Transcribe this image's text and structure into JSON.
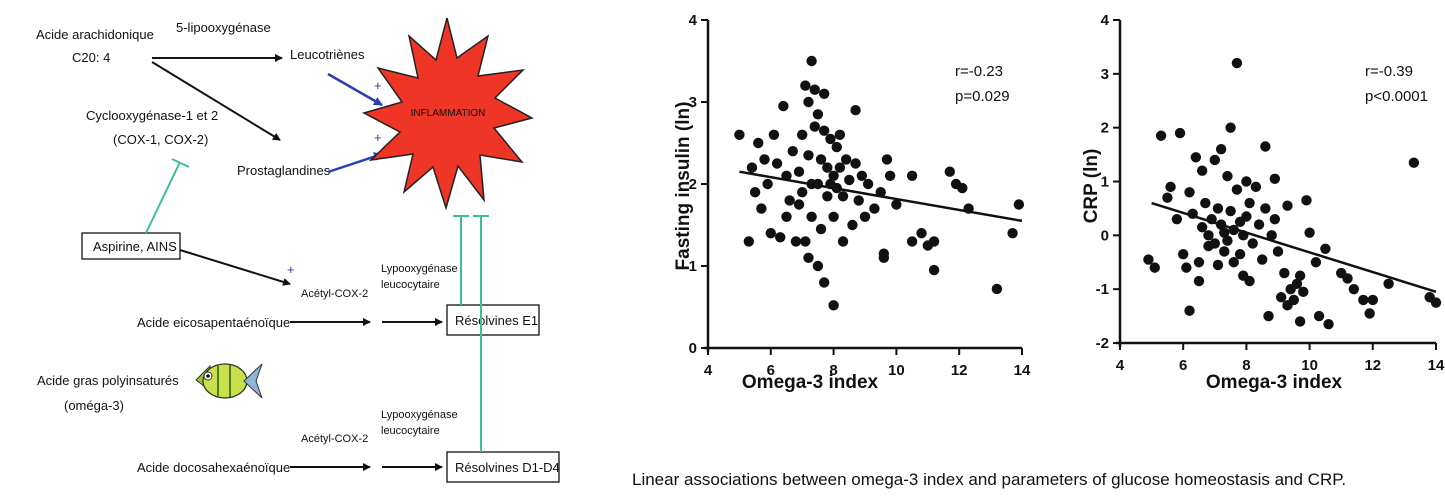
{
  "diagram": {
    "nodes": {
      "arachidonic": "Acide arachidonique",
      "c20": "C20: 4",
      "lipox5": "5-lipooxygénase",
      "leuco": "Leucotriènes",
      "cox_line1": "Cyclooxygénase-1 et 2",
      "cox_line2": "(COX-1, COX-2)",
      "prosta": "Prostaglandines",
      "inflammation": "INFLAMMATION",
      "aspirin": "Aspirine, AINS",
      "acetyl1": "Acétyl-COX-2",
      "lypo1_line1": "Lypooxygénase",
      "lypo1_line2": "leucocytaire",
      "epa": "Acide eicosapentaénoïque",
      "resolvE": "Résolvines E1",
      "pufa_line1": "Acide gras polyinsaturés",
      "pufa_line2": "(oméga-3)",
      "acetyl2": "Acétyl-COX-2",
      "lypo2_line1": "Lypooxygénase",
      "lypo2_line2": "leucocytaire",
      "dha": "Acide docosahexaénoïque",
      "resolvD": "Résolvines D1-D4",
      "plus": "+"
    },
    "colors": {
      "activation_arrow": "#2a3fb0",
      "inhibition_line": "#3dbf8f",
      "burst_fill": "#ee3526",
      "fish_body": "#c8e04a"
    }
  },
  "caption": "Linear associations between omega-3 index and parameters of glucose homeostasis and CRP.",
  "chart_data": [
    {
      "type": "scatter",
      "title": "",
      "xlabel": "Omega-3 index",
      "ylabel": "Fasting insulin (ln)",
      "xlim": [
        4,
        14
      ],
      "ylim": [
        0,
        4
      ],
      "xticks": [
        4,
        6,
        8,
        10,
        12,
        14
      ],
      "yticks": [
        0,
        1,
        2,
        3,
        4
      ],
      "annotation": [
        "r=-0.23",
        "p=0.029"
      ],
      "trendline": [
        [
          5.0,
          2.15
        ],
        [
          14.0,
          1.55
        ]
      ],
      "points": [
        [
          5.0,
          2.6
        ],
        [
          5.3,
          1.3
        ],
        [
          5.4,
          2.2
        ],
        [
          5.5,
          1.9
        ],
        [
          5.6,
          2.5
        ],
        [
          5.7,
          1.7
        ],
        [
          5.8,
          2.3
        ],
        [
          5.9,
          2.0
        ],
        [
          6.0,
          1.4
        ],
        [
          6.1,
          2.6
        ],
        [
          6.2,
          2.25
        ],
        [
          6.3,
          1.35
        ],
        [
          6.4,
          2.95
        ],
        [
          6.5,
          2.1
        ],
        [
          6.5,
          1.6
        ],
        [
          6.6,
          1.8
        ],
        [
          6.7,
          2.4
        ],
        [
          6.8,
          1.3
        ],
        [
          6.9,
          2.15
        ],
        [
          6.9,
          1.75
        ],
        [
          7.0,
          2.6
        ],
        [
          7.0,
          1.9
        ],
        [
          7.1,
          1.3
        ],
        [
          7.1,
          3.2
        ],
        [
          7.2,
          3.0
        ],
        [
          7.2,
          2.35
        ],
        [
          7.2,
          1.1
        ],
        [
          7.3,
          3.5
        ],
        [
          7.3,
          2.0
        ],
        [
          7.3,
          1.6
        ],
        [
          7.4,
          3.15
        ],
        [
          7.4,
          2.7
        ],
        [
          7.5,
          2.85
        ],
        [
          7.5,
          2.0
        ],
        [
          7.5,
          1.0
        ],
        [
          7.6,
          2.3
        ],
        [
          7.6,
          1.45
        ],
        [
          7.7,
          3.1
        ],
        [
          7.7,
          2.65
        ],
        [
          7.7,
          0.8
        ],
        [
          7.8,
          2.2
        ],
        [
          7.8,
          1.85
        ],
        [
          7.9,
          2.55
        ],
        [
          7.9,
          2.0
        ],
        [
          8.0,
          2.1
        ],
        [
          8.0,
          1.6
        ],
        [
          8.0,
          0.52
        ],
        [
          8.1,
          2.45
        ],
        [
          8.1,
          1.95
        ],
        [
          8.2,
          2.6
        ],
        [
          8.2,
          2.2
        ],
        [
          8.3,
          1.3
        ],
        [
          8.3,
          1.85
        ],
        [
          8.4,
          2.3
        ],
        [
          8.5,
          2.05
        ],
        [
          8.6,
          1.5
        ],
        [
          8.7,
          2.9
        ],
        [
          8.7,
          2.25
        ],
        [
          8.8,
          1.8
        ],
        [
          8.9,
          2.1
        ],
        [
          9.0,
          1.6
        ],
        [
          9.1,
          2.0
        ],
        [
          9.3,
          1.7
        ],
        [
          9.5,
          1.9
        ],
        [
          9.6,
          1.1
        ],
        [
          9.6,
          1.15
        ],
        [
          9.7,
          2.3
        ],
        [
          9.8,
          2.1
        ],
        [
          10.0,
          1.75
        ],
        [
          10.5,
          2.1
        ],
        [
          10.5,
          1.3
        ],
        [
          10.8,
          1.4
        ],
        [
          11.0,
          1.25
        ],
        [
          11.2,
          1.3
        ],
        [
          11.2,
          0.95
        ],
        [
          11.7,
          2.15
        ],
        [
          11.9,
          2.0
        ],
        [
          12.1,
          1.95
        ],
        [
          12.3,
          1.7
        ],
        [
          13.2,
          0.72
        ],
        [
          13.7,
          1.4
        ],
        [
          13.9,
          1.75
        ]
      ]
    },
    {
      "type": "scatter",
      "title": "",
      "xlabel": "Omega-3 index",
      "ylabel": "CRP (ln)",
      "xlim": [
        4,
        14
      ],
      "ylim": [
        -2,
        4
      ],
      "xticks": [
        4,
        6,
        8,
        10,
        12,
        14
      ],
      "yticks": [
        -2,
        -1,
        0,
        1,
        2,
        3,
        4
      ],
      "annotation": [
        "r=-0.39",
        "p<0.0001"
      ],
      "trendline": [
        [
          5.0,
          0.6
        ],
        [
          14.0,
          -1.05
        ]
      ],
      "points": [
        [
          4.9,
          -0.45
        ],
        [
          5.1,
          -0.6
        ],
        [
          5.3,
          1.85
        ],
        [
          5.5,
          0.7
        ],
        [
          5.6,
          0.9
        ],
        [
          5.8,
          0.3
        ],
        [
          5.9,
          1.9
        ],
        [
          6.0,
          -0.35
        ],
        [
          6.1,
          -0.6
        ],
        [
          6.2,
          -1.4
        ],
        [
          6.2,
          0.8
        ],
        [
          6.3,
          0.4
        ],
        [
          6.4,
          1.45
        ],
        [
          6.5,
          -0.5
        ],
        [
          6.5,
          -0.85
        ],
        [
          6.6,
          1.2
        ],
        [
          6.6,
          0.15
        ],
        [
          6.7,
          0.6
        ],
        [
          6.8,
          0.0
        ],
        [
          6.8,
          -0.2
        ],
        [
          6.9,
          0.3
        ],
        [
          7.0,
          1.4
        ],
        [
          7.0,
          -0.15
        ],
        [
          7.1,
          0.5
        ],
        [
          7.1,
          -0.55
        ],
        [
          7.2,
          1.6
        ],
        [
          7.2,
          0.2
        ],
        [
          7.3,
          -0.3
        ],
        [
          7.3,
          0.05
        ],
        [
          7.4,
          1.1
        ],
        [
          7.4,
          -0.1
        ],
        [
          7.5,
          2.0
        ],
        [
          7.5,
          0.45
        ],
        [
          7.6,
          -0.5
        ],
        [
          7.6,
          0.1
        ],
        [
          7.7,
          3.2
        ],
        [
          7.7,
          0.85
        ],
        [
          7.8,
          -0.35
        ],
        [
          7.8,
          0.25
        ],
        [
          7.9,
          -0.75
        ],
        [
          7.9,
          0.0
        ],
        [
          8.0,
          1.0
        ],
        [
          8.0,
          0.35
        ],
        [
          8.1,
          -0.85
        ],
        [
          8.1,
          0.6
        ],
        [
          8.2,
          -0.15
        ],
        [
          8.3,
          0.9
        ],
        [
          8.4,
          0.2
        ],
        [
          8.5,
          -0.45
        ],
        [
          8.6,
          1.65
        ],
        [
          8.6,
          0.5
        ],
        [
          8.7,
          -1.5
        ],
        [
          8.8,
          0.0
        ],
        [
          8.9,
          1.05
        ],
        [
          8.9,
          0.3
        ],
        [
          9.0,
          -0.3
        ],
        [
          9.1,
          -1.15
        ],
        [
          9.2,
          -0.7
        ],
        [
          9.3,
          0.55
        ],
        [
          9.3,
          -1.3
        ],
        [
          9.4,
          -1.0
        ],
        [
          9.5,
          -1.2
        ],
        [
          9.6,
          -0.9
        ],
        [
          9.7,
          -1.6
        ],
        [
          9.7,
          -0.75
        ],
        [
          9.8,
          -1.05
        ],
        [
          9.9,
          0.65
        ],
        [
          10.0,
          0.05
        ],
        [
          10.2,
          -0.5
        ],
        [
          10.3,
          -1.5
        ],
        [
          10.5,
          -0.25
        ],
        [
          10.6,
          -1.65
        ],
        [
          11.0,
          -0.7
        ],
        [
          11.2,
          -0.8
        ],
        [
          11.4,
          -1.0
        ],
        [
          11.7,
          -1.2
        ],
        [
          11.9,
          -1.45
        ],
        [
          12.0,
          -1.2
        ],
        [
          12.5,
          -0.9
        ],
        [
          13.3,
          1.35
        ],
        [
          13.8,
          -1.15
        ],
        [
          14.0,
          -1.25
        ]
      ]
    }
  ]
}
